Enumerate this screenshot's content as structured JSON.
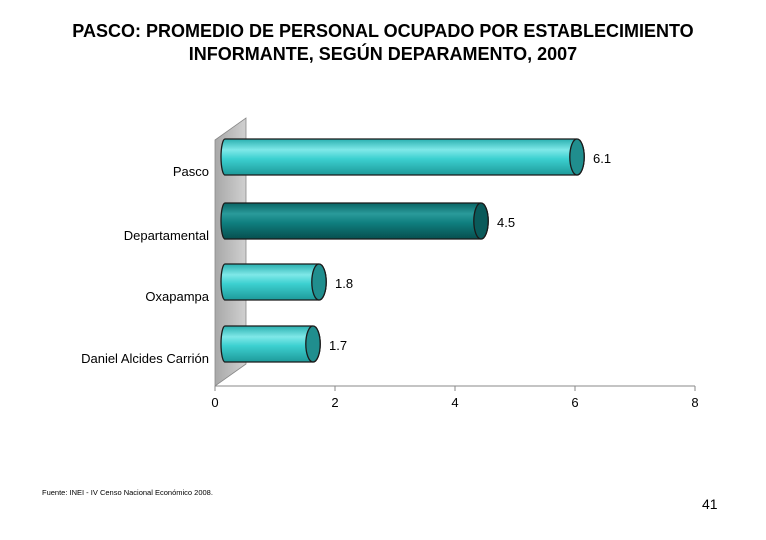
{
  "slide": {
    "title_line1": "PASCO: PROMEDIO DE PERSONAL OCUPADO POR ESTABLECIMIENTO",
    "title_line2": "INFORMANTE, SEGÚN DEPARAMENTO, 2007",
    "source": "Fuente: INEI - IV Censo Nacional Económico 2008.",
    "page_number": "41"
  },
  "chart_data": {
    "type": "bar",
    "orientation": "horizontal",
    "style": "3d-cylinder",
    "categories": [
      "Pasco",
      "Departamental",
      "Oxapampa",
      "Daniel Alcides Carrión"
    ],
    "values": [
      6.1,
      4.5,
      1.8,
      1.7
    ],
    "value_labels": [
      "6.1",
      "4.5",
      "1.8",
      "1.7"
    ],
    "xlim": [
      0,
      8
    ],
    "xticks": [
      0,
      2,
      4,
      6,
      8
    ],
    "xtick_labels": [
      "0",
      "2",
      "4",
      "6",
      "8"
    ],
    "grid": false,
    "legend": "none",
    "colors": {
      "default_bar": "#33CCCC",
      "highlight_bar": "#0F7F7F",
      "bar_outline": "#1a1a1a",
      "wall": "#C0C0C0"
    },
    "highlight_index": 1
  }
}
